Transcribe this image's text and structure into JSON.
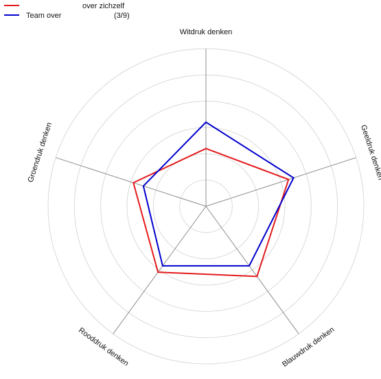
{
  "chart_data": {
    "type": "radar",
    "axes": [
      "Geeldruk denken",
      "Blauwdruk denken",
      "Rooddruk denken",
      "Groendruk denken",
      "Witdruk denken"
    ],
    "rmax": 6,
    "ring_count": 6,
    "grid": true,
    "legend_position": "top-left",
    "series": [
      {
        "name": "over zichzelf",
        "color": "#e31a1c",
        "values": [
          3.3,
          3.3,
          3.1,
          2.9,
          2.2
        ]
      },
      {
        "name": "Team over",
        "note": "(3/9)",
        "color": "#0000cc",
        "values": [
          3.5,
          2.8,
          2.8,
          2.5,
          3.2
        ]
      }
    ]
  }
}
